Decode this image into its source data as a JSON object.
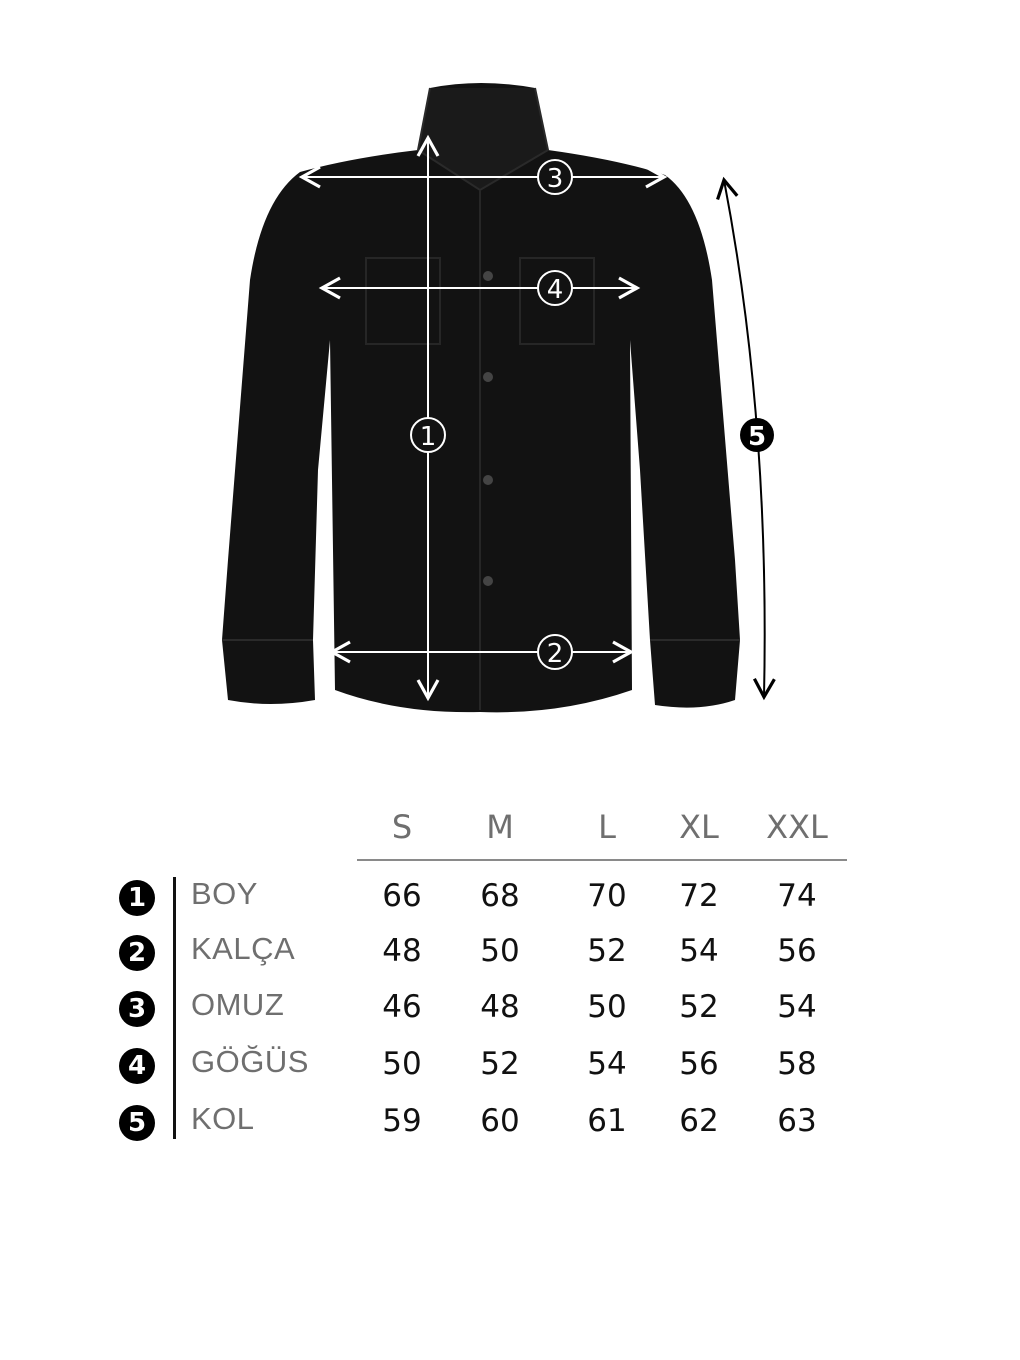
{
  "diagram": {
    "markers": [
      "1",
      "2",
      "3",
      "4",
      "5"
    ],
    "colors": {
      "shirt": "#121212",
      "arrow_on_shirt": "#ffffff",
      "arrow_outside": "#000000"
    }
  },
  "table": {
    "sizes": [
      "S",
      "M",
      "L",
      "XL",
      "XXL"
    ],
    "rows": [
      {
        "num": "1",
        "label": "BOY",
        "values": [
          "66",
          "68",
          "70",
          "72",
          "74"
        ]
      },
      {
        "num": "2",
        "label": "KALÇA",
        "values": [
          "48",
          "50",
          "52",
          "54",
          "56"
        ]
      },
      {
        "num": "3",
        "label": "OMUZ",
        "values": [
          "46",
          "48",
          "50",
          "52",
          "54"
        ]
      },
      {
        "num": "4",
        "label": "GÖĞÜS",
        "values": [
          "50",
          "52",
          "54",
          "56",
          "58"
        ]
      },
      {
        "num": "5",
        "label": "KOL",
        "values": [
          "59",
          "60",
          "61",
          "62",
          "63"
        ]
      }
    ]
  }
}
